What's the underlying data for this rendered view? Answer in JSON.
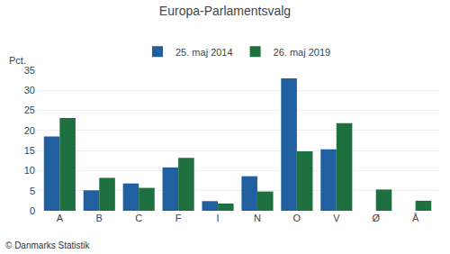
{
  "chart_data": {
    "type": "bar",
    "title": "Europa-Parlamentsvalg",
    "ylabel": "Pct.",
    "categories": [
      "A",
      "B",
      "C",
      "F",
      "I",
      "N",
      "O",
      "V",
      "Ø",
      "Å"
    ],
    "series": [
      {
        "name": "25. maj 2014",
        "color": "#2060A0",
        "values": [
          18.5,
          5.1,
          6.8,
          10.8,
          2.4,
          8.6,
          33.0,
          15.3,
          0.0,
          0.0
        ]
      },
      {
        "name": "26. maj 2019",
        "color": "#1E7040",
        "values": [
          23.1,
          8.2,
          5.7,
          13.2,
          1.8,
          4.8,
          14.8,
          21.8,
          5.3,
          2.5
        ]
      }
    ],
    "ylim": [
      0,
      35
    ],
    "yticks": [
      0,
      5,
      10,
      15,
      20,
      25,
      30,
      35
    ],
    "grid": true,
    "legend": "top",
    "annotations": [
      "© Danmarks Statistik"
    ]
  }
}
